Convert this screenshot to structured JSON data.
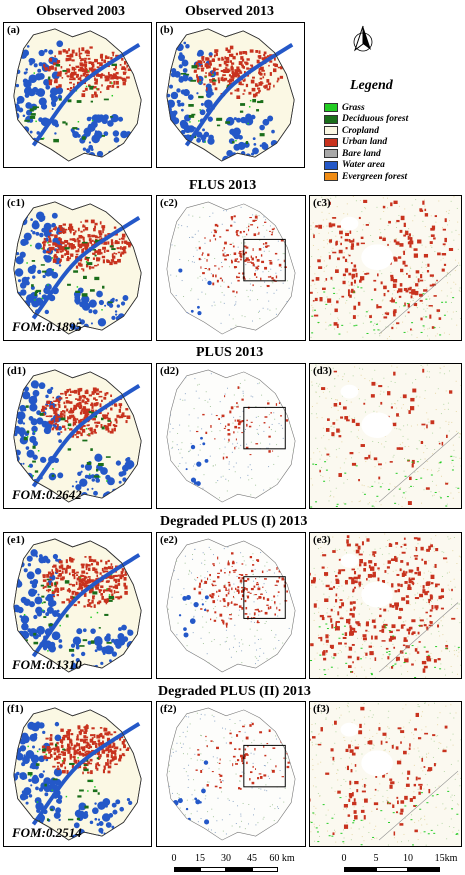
{
  "titles": {
    "observed_2003": "Observed 2003",
    "observed_2013": "Observed 2013",
    "flus": "FLUS 2013",
    "plus": "PLUS 2013",
    "degraded1": "Degraded PLUS (I) 2013",
    "degraded2": "Degraded PLUS (II) 2013"
  },
  "panels": {
    "a": "(a)",
    "b": "(b)",
    "c1": "(c1)",
    "c2": "(c2)",
    "c3": "(c3)",
    "d1": "(d1)",
    "d2": "(d2)",
    "d3": "(d3)",
    "e1": "(e1)",
    "e2": "(e2)",
    "e3": "(e3)",
    "f1": "(f1)",
    "f2": "(f2)",
    "f3": "(f3)"
  },
  "fom": {
    "c1": "FOM:0.1895",
    "d1": "FOM:0.2642",
    "e1": "FOM:0.1310",
    "f1": "FOM:0.2514"
  },
  "legend": {
    "title": "Legend",
    "items": [
      {
        "label": "Grass",
        "color": "#22cc22"
      },
      {
        "label": "Deciduous forest",
        "color": "#1a6e1a"
      },
      {
        "label": "Cropland",
        "color": "#fbf8e4"
      },
      {
        "label": "Urban land",
        "color": "#c8321e"
      },
      {
        "label": "Bare land",
        "color": "#a8a8a8"
      },
      {
        "label": "Water area",
        "color": "#2458c8"
      },
      {
        "label": "Evergreen forest",
        "color": "#f08c14"
      }
    ]
  },
  "scale_left": {
    "ticks": [
      "0",
      "15",
      "30",
      "45",
      "60 km"
    ]
  },
  "scale_right": {
    "ticks": [
      "0",
      "5",
      "10",
      "15km"
    ]
  },
  "icons": {
    "north_arrow": "north-arrow-icon"
  }
}
